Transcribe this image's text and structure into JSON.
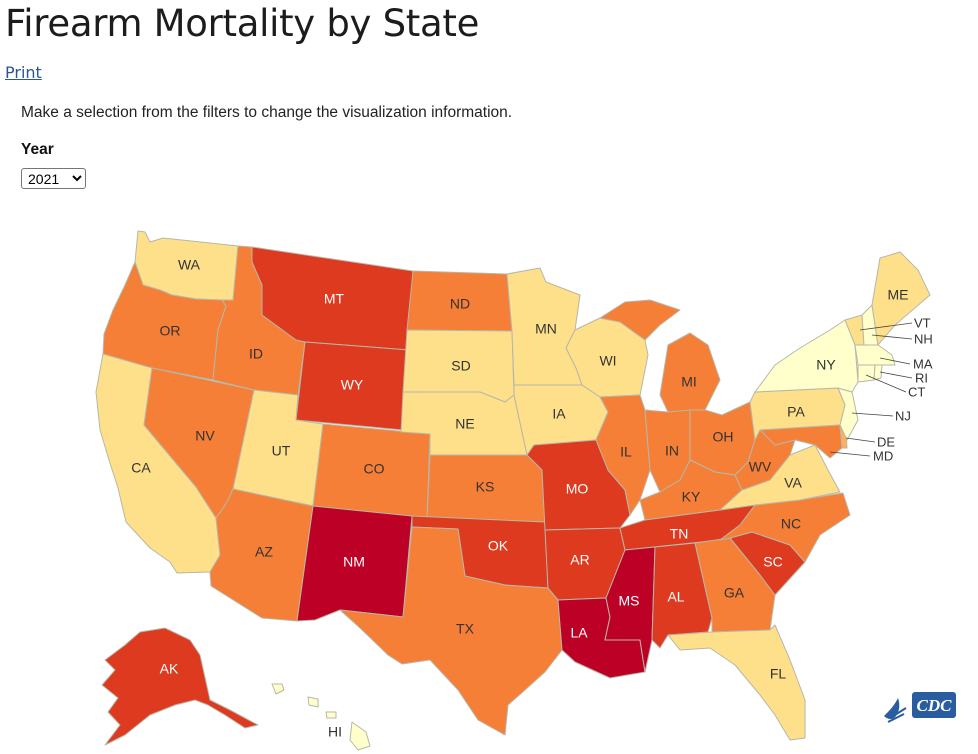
{
  "page": {
    "title": "Firearm Mortality by State",
    "print_label": "Print",
    "instructions": "Make a selection from the filters to change the visualization information."
  },
  "filters": {
    "year_label": "Year",
    "year_selected": "2021",
    "year_options": [
      "2021"
    ]
  },
  "map_data": {
    "type": "choropleth",
    "title": "Firearm Mortality by State",
    "year": "2021",
    "color_scale": {
      "1": "#ffffcc",
      "2": "#fee08b",
      "3": "#fdae61",
      "4": "#f57f36",
      "5": "#dd3a1f",
      "6": "#bd0026"
    },
    "states": [
      {
        "abbr": "WA",
        "bin": 2
      },
      {
        "abbr": "OR",
        "bin": 4
      },
      {
        "abbr": "CA",
        "bin": 2
      },
      {
        "abbr": "NV",
        "bin": 4
      },
      {
        "abbr": "ID",
        "bin": 4
      },
      {
        "abbr": "MT",
        "bin": 5
      },
      {
        "abbr": "WY",
        "bin": 5
      },
      {
        "abbr": "UT",
        "bin": 2
      },
      {
        "abbr": "AZ",
        "bin": 4
      },
      {
        "abbr": "CO",
        "bin": 4
      },
      {
        "abbr": "NM",
        "bin": 6
      },
      {
        "abbr": "ND",
        "bin": 4
      },
      {
        "abbr": "SD",
        "bin": 2
      },
      {
        "abbr": "NE",
        "bin": 2
      },
      {
        "abbr": "KS",
        "bin": 4
      },
      {
        "abbr": "OK",
        "bin": 5
      },
      {
        "abbr": "TX",
        "bin": 4
      },
      {
        "abbr": "MN",
        "bin": 2
      },
      {
        "abbr": "IA",
        "bin": 2
      },
      {
        "abbr": "MO",
        "bin": 5
      },
      {
        "abbr": "AR",
        "bin": 5
      },
      {
        "abbr": "LA",
        "bin": 6
      },
      {
        "abbr": "WI",
        "bin": 2
      },
      {
        "abbr": "IL",
        "bin": 4
      },
      {
        "abbr": "MI",
        "bin": 4
      },
      {
        "abbr": "IN",
        "bin": 4
      },
      {
        "abbr": "OH",
        "bin": 4
      },
      {
        "abbr": "KY",
        "bin": 4
      },
      {
        "abbr": "TN",
        "bin": 5
      },
      {
        "abbr": "MS",
        "bin": 6
      },
      {
        "abbr": "AL",
        "bin": 5
      },
      {
        "abbr": "GA",
        "bin": 4
      },
      {
        "abbr": "FL",
        "bin": 2
      },
      {
        "abbr": "SC",
        "bin": 5
      },
      {
        "abbr": "NC",
        "bin": 4
      },
      {
        "abbr": "VA",
        "bin": 2
      },
      {
        "abbr": "WV",
        "bin": 4
      },
      {
        "abbr": "PA",
        "bin": 2
      },
      {
        "abbr": "NY",
        "bin": 1
      },
      {
        "abbr": "ME",
        "bin": 2
      },
      {
        "abbr": "VT",
        "bin": 2
      },
      {
        "abbr": "NH",
        "bin": 1
      },
      {
        "abbr": "MA",
        "bin": 1
      },
      {
        "abbr": "RI",
        "bin": 1
      },
      {
        "abbr": "CT",
        "bin": 1
      },
      {
        "abbr": "NJ",
        "bin": 1
      },
      {
        "abbr": "DE",
        "bin": 3
      },
      {
        "abbr": "MD",
        "bin": 4
      },
      {
        "abbr": "AK",
        "bin": 5
      },
      {
        "abbr": "HI",
        "bin": 1
      }
    ]
  },
  "footer": {
    "logo_text": "CDC",
    "logo_icon": "hhs-eagle-icon"
  }
}
